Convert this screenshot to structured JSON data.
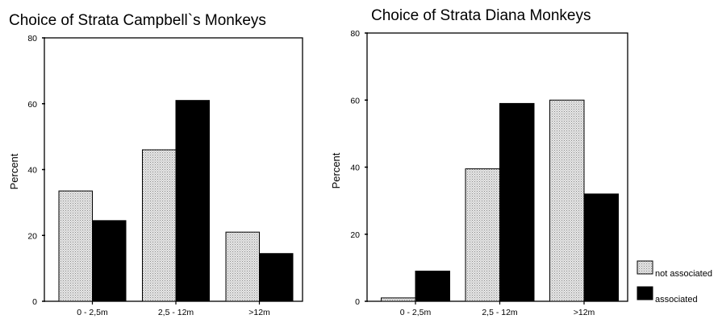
{
  "chart_data": [
    {
      "type": "bar",
      "title": "Choice of Strata Campbell`s Monkeys",
      "xlabel": "",
      "ylabel": "Percent",
      "ylim": [
        0,
        80
      ],
      "yticks": [
        0,
        20,
        40,
        60,
        80
      ],
      "categories": [
        "0 - 2,5m",
        "2,5 - 12m",
        ">12m"
      ],
      "series": [
        {
          "name": "not associated",
          "values": [
            33.5,
            46,
            21
          ],
          "color": "#d9d9d9",
          "pattern": "dotted"
        },
        {
          "name": "associated",
          "values": [
            24.5,
            61,
            14.5
          ],
          "color": "#000000"
        }
      ],
      "grid": false,
      "legend": "none"
    },
    {
      "type": "bar",
      "title": "Choice of Strata Diana Monkeys",
      "xlabel": "",
      "ylabel": "Percent",
      "ylim": [
        0,
        80
      ],
      "yticks": [
        0,
        20,
        40,
        60,
        80
      ],
      "categories": [
        "0 - 2,5m",
        "2,5 - 12m",
        ">12m"
      ],
      "series": [
        {
          "name": "not associated",
          "values": [
            1,
            39.5,
            60
          ],
          "color": "#d9d9d9",
          "pattern": "dotted"
        },
        {
          "name": "associated",
          "values": [
            9,
            59,
            32
          ],
          "color": "#000000"
        }
      ],
      "grid": false,
      "legend": "right-bottom"
    }
  ],
  "legend": {
    "items": [
      {
        "label": "not associated",
        "swatch": "dotted-gray"
      },
      {
        "label": "associated",
        "swatch": "black"
      }
    ]
  }
}
